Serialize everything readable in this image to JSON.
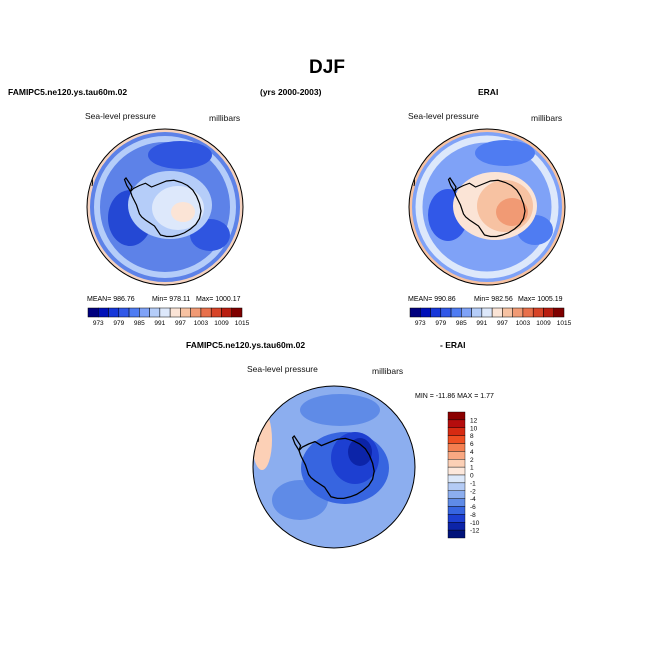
{
  "title": "DJF",
  "top_left_header": "FAMIPC5.ne120.ys.tau60m.02",
  "top_center_header": "(yrs 2000-2003)",
  "top_right_header": "ERAI",
  "bottom_header_left": "FAMIPC5.ne120.ys.tau60m.02",
  "bottom_header_right": "- ERAI",
  "chart_data": [
    {
      "type": "heatmap",
      "name": "model",
      "variable_label": "Sea-level pressure",
      "units_label": "millibars",
      "stats": {
        "mean": "MEAN= 986.76",
        "min": "Min= 978.11",
        "max": "Max= 1000.17"
      },
      "colorbar_labels": [
        "973",
        "979",
        "985",
        "991",
        "997",
        "1003",
        "1009",
        "1015"
      ],
      "colorbar_colors": [
        "#00007f",
        "#0010b8",
        "#1637d9",
        "#3158e8",
        "#4f7cf2",
        "#7fa2f7",
        "#b5cdf9",
        "#dde8fb",
        "#fbe4d6",
        "#f7c2a2",
        "#f19a74",
        "#e8704b",
        "#d74428",
        "#b81d10",
        "#7f0000"
      ]
    },
    {
      "type": "heatmap",
      "name": "ERAI",
      "variable_label": "Sea-level pressure",
      "units_label": "millibars",
      "stats": {
        "mean": "MEAN= 990.86",
        "min": "Min= 982.56",
        "max": "Max= 1005.19"
      },
      "colorbar_labels": [
        "973",
        "979",
        "985",
        "991",
        "997",
        "1003",
        "1009",
        "1015"
      ],
      "colorbar_colors": [
        "#00007f",
        "#0010b8",
        "#1637d9",
        "#3158e8",
        "#4f7cf2",
        "#7fa2f7",
        "#b5cdf9",
        "#dde8fb",
        "#fbe4d6",
        "#f7c2a2",
        "#f19a74",
        "#e8704b",
        "#d74428",
        "#b81d10",
        "#7f0000"
      ]
    },
    {
      "type": "heatmap",
      "name": "difference",
      "variable_label": "Sea-level pressure",
      "units_label": "millibars",
      "minmax": "MIN = -11.86  MAX =    1.77",
      "colorbar_labels": [
        "12",
        "10",
        "8",
        "6",
        "4",
        "2",
        "1",
        "0",
        "-1",
        "-2",
        "-4",
        "-6",
        "-8",
        "-10",
        "-12"
      ],
      "colorbar_colors": [
        "#8b0000",
        "#b50d0d",
        "#d62b12",
        "#ee4f22",
        "#f47f50",
        "#f9a882",
        "#fcd0b6",
        "#fde8dc",
        "#dce8fa",
        "#b4cbf5",
        "#8caeef",
        "#5f8be7",
        "#3765e0",
        "#1d3fd1",
        "#0c24a8",
        "#00127a"
      ]
    }
  ]
}
